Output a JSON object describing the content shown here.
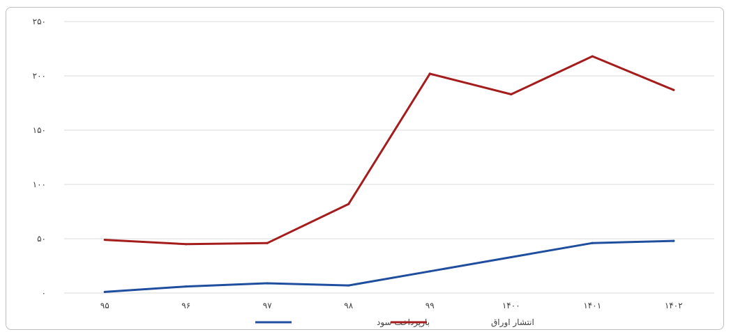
{
  "chart_data": {
    "type": "line",
    "categories": [
      "۹۵",
      "۹۶",
      "۹۷",
      "۹۸",
      "۹۹",
      "۱۴۰۰",
      "۱۴۰۱",
      "۱۴۰۲"
    ],
    "y_tick_labels": [
      "۰",
      "۵۰",
      "۱۰۰",
      "۱۵۰",
      "۲۰۰",
      "۲۵۰"
    ],
    "y_tick_values": [
      0,
      50,
      100,
      150,
      200,
      250
    ],
    "ylim": [
      0,
      250
    ],
    "grid": true,
    "legend_position": "bottom",
    "series": [
      {
        "name": "بازپرداخت سود",
        "color": "#1f4e9e",
        "values": [
          1,
          6,
          9,
          7,
          20,
          33,
          46,
          48
        ]
      },
      {
        "name": "انتشار اوراق",
        "color": "#a51c1c",
        "values": [
          49,
          45,
          46,
          82,
          202,
          183,
          218,
          187
        ]
      }
    ]
  }
}
